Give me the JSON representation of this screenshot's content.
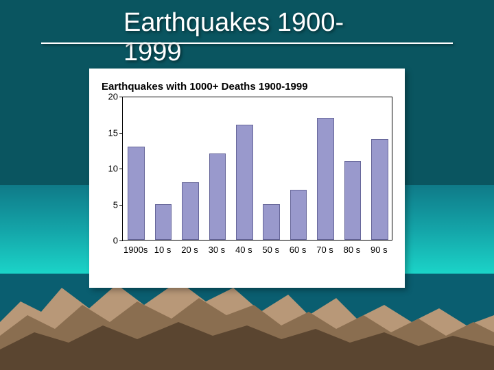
{
  "slide": {
    "title": "Earthquakes 1900-1999",
    "title_color": "#ffffff",
    "title_fontsize": 38,
    "underline_color": "#ffffff",
    "background_gradient": [
      "#0a5560",
      "#0f7a88",
      "#14a4a8",
      "#1bd4c8",
      "#0a5e70"
    ],
    "mountain_colors": {
      "light": "#b89878",
      "mid": "#8a6e50",
      "dark": "#5a4530"
    }
  },
  "chart": {
    "type": "bar",
    "title": "Earthquakes with 1000+ Deaths 1900-1999",
    "title_fontsize": 15,
    "title_color": "#000000",
    "background_color": "#ffffff",
    "categories": [
      "1900s",
      "10 s",
      "20 s",
      "30 s",
      "40 s",
      "50 s",
      "60 s",
      "70 s",
      "80 s",
      "90 s"
    ],
    "values": [
      13,
      5,
      8,
      12,
      16,
      5,
      7,
      17,
      11,
      14
    ],
    "bar_color": "#9999cc",
    "bar_border_color": "#666699",
    "bar_width": 0.62,
    "ylim": [
      0,
      20
    ],
    "ytick_step": 5,
    "y_ticks": [
      0,
      5,
      10,
      15,
      20
    ],
    "axis_color": "#000000",
    "label_fontsize": 13,
    "label_color": "#000000"
  }
}
